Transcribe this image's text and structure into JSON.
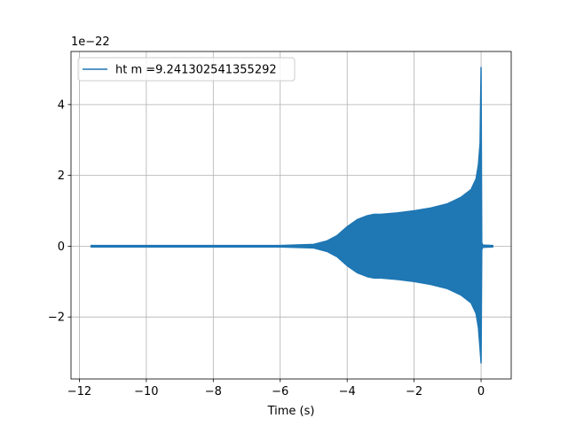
{
  "chart_data": {
    "type": "line",
    "title": "",
    "xlabel": "Time (s)",
    "ylabel": "",
    "y_offset_label": "1e−22",
    "xlim": [
      -12.25,
      0.9
    ],
    "ylim": [
      -3.75,
      5.5
    ],
    "x_ticks": [
      -12,
      -10,
      -8,
      -6,
      -4,
      -2,
      0
    ],
    "x_tick_labels": [
      "−12",
      "−10",
      "−8",
      "−6",
      "−4",
      "−2",
      "0"
    ],
    "y_ticks": [
      -2,
      0,
      2,
      4
    ],
    "y_tick_labels": [
      "−2",
      "0",
      "2",
      "4"
    ],
    "grid": true,
    "legend_position": "upper-left",
    "series": [
      {
        "name": "ht m =9.241302541355292",
        "color": "#1f77b4",
        "style": "rapidly oscillating chirp; envelope shown as upper/lower amplitude (units of 1e-22)",
        "x": [
          -11.65,
          -11.0,
          -10.0,
          -8.0,
          -6.0,
          -5.0,
          -4.6,
          -4.3,
          -4.0,
          -3.7,
          -3.4,
          -3.2,
          -3.0,
          -2.5,
          -2.0,
          -1.5,
          -1.0,
          -0.6,
          -0.3,
          -0.15,
          -0.08,
          -0.03,
          0.0,
          0.02,
          0.05,
          0.1,
          0.35
        ],
        "upper": [
          0.02,
          0.02,
          0.02,
          0.02,
          0.02,
          0.05,
          0.15,
          0.3,
          0.55,
          0.75,
          0.86,
          0.9,
          0.9,
          0.94,
          1.0,
          1.08,
          1.2,
          1.38,
          1.6,
          1.9,
          2.3,
          2.9,
          5.05,
          0.1,
          0.03,
          0.03,
          0.02
        ],
        "lower": [
          -0.02,
          -0.02,
          -0.02,
          -0.02,
          -0.02,
          -0.05,
          -0.15,
          -0.3,
          -0.55,
          -0.75,
          -0.86,
          -0.9,
          -0.9,
          -0.94,
          -1.0,
          -1.08,
          -1.2,
          -1.38,
          -1.6,
          -1.9,
          -2.3,
          -2.9,
          -3.3,
          -0.1,
          -0.03,
          -0.03,
          -0.02
        ]
      }
    ]
  }
}
